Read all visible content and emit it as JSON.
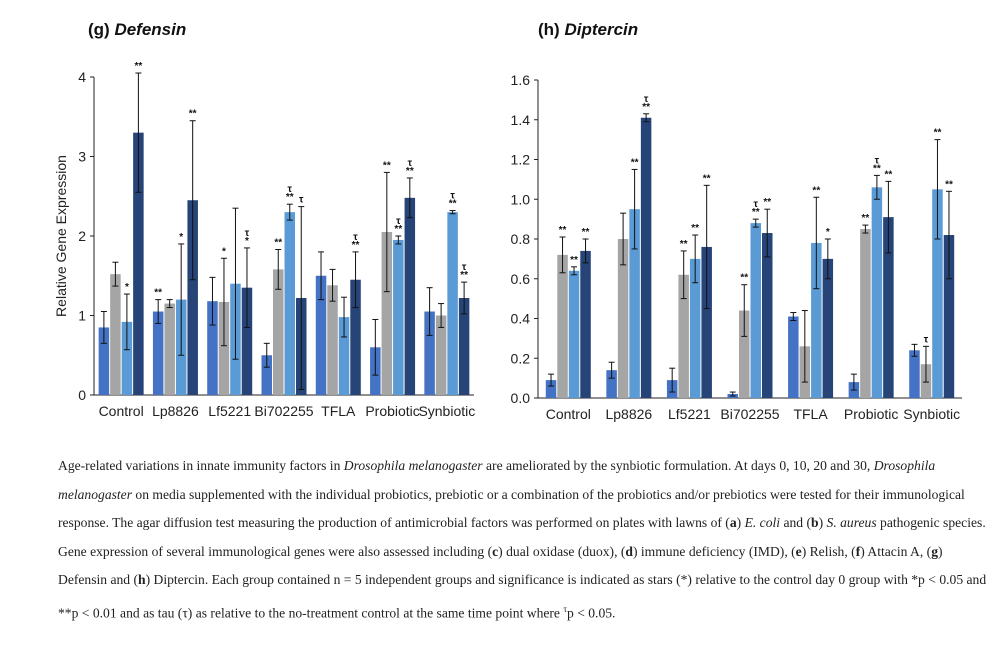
{
  "colors": {
    "day0": "#4472c4",
    "day10": "#a5a5a5",
    "day20": "#5b9bd5",
    "day30": "#264478"
  },
  "charts": {
    "g": {
      "title_prefix": "(g)",
      "title_gene": "Defensin",
      "ylabel": "Relative Gene Expression"
    },
    "h": {
      "title_prefix": "(h)",
      "title_gene": "Diptercin",
      "ylabel": ""
    }
  },
  "chart_data": [
    {
      "type": "bar",
      "title": "(g) Defensin",
      "xlabel": "",
      "ylabel": "Relative Gene Expression",
      "ylim": [
        0,
        4
      ],
      "yticks": [
        "0",
        "1",
        "2",
        "3",
        "4"
      ],
      "categories": [
        "Control",
        "Lp8826",
        "Lf5221",
        "Bi702255",
        "TFLA",
        "Probiotic",
        "Synbiotic"
      ],
      "series": [
        {
          "values": [
            0.85,
            1.05,
            1.18,
            0.5,
            1.5,
            0.6,
            1.05
          ],
          "errors": [
            0.2,
            0.15,
            0.3,
            0.15,
            0.3,
            0.35,
            0.3
          ]
        },
        {
          "values": [
            1.52,
            1.15,
            1.17,
            1.58,
            1.38,
            2.05,
            1.0
          ],
          "errors": [
            0.15,
            0.05,
            0.55,
            0.25,
            0.2,
            0.75,
            0.15
          ]
        },
        {
          "values": [
            0.92,
            1.2,
            1.4,
            2.3,
            0.98,
            1.95,
            2.3
          ],
          "errors": [
            0.35,
            0.7,
            0.95,
            0.1,
            0.25,
            0.05,
            0.02
          ]
        },
        {
          "values": [
            3.3,
            2.45,
            1.35,
            1.22,
            1.45,
            2.48,
            1.22
          ],
          "errors": [
            0.75,
            1.0,
            0.5,
            1.15,
            0.35,
            0.25,
            0.2
          ]
        }
      ],
      "annotations": [
        [
          "",
          "",
          "*",
          "**"
        ],
        [
          "**",
          "",
          "*",
          "**"
        ],
        [
          "",
          "*",
          "",
          "τ\n*"
        ],
        [
          "",
          "**",
          "τ\n**",
          "τ"
        ],
        [
          "",
          "",
          "",
          "τ\n**"
        ],
        [
          "",
          "**",
          "τ\n**",
          "τ\n**"
        ],
        [
          "",
          "",
          "τ\n**",
          "τ\n**"
        ]
      ]
    },
    {
      "type": "bar",
      "title": "(h) Diptercin",
      "xlabel": "",
      "ylabel": "",
      "ylim": [
        0,
        1.6
      ],
      "yticks": [
        "0.0",
        "0.2",
        "0.4",
        "0.6",
        "0.8",
        "1.0",
        "1.2",
        "1.4",
        "1.6"
      ],
      "categories": [
        "Control",
        "Lp8826",
        "Lf5221",
        "Bi702255",
        "TFLA",
        "Probiotic",
        "Synbiotic"
      ],
      "series": [
        {
          "values": [
            0.09,
            0.14,
            0.09,
            0.02,
            0.41,
            0.08,
            0.24
          ],
          "errors": [
            0.03,
            0.04,
            0.06,
            0.01,
            0.02,
            0.04,
            0.03
          ]
        },
        {
          "values": [
            0.72,
            0.8,
            0.62,
            0.44,
            0.26,
            0.85,
            0.17
          ],
          "errors": [
            0.09,
            0.13,
            0.12,
            0.13,
            0.18,
            0.02,
            0.09
          ]
        },
        {
          "values": [
            0.64,
            0.95,
            0.7,
            0.88,
            0.78,
            1.06,
            1.05
          ],
          "errors": [
            0.02,
            0.2,
            0.12,
            0.02,
            0.23,
            0.06,
            0.25
          ]
        },
        {
          "values": [
            0.74,
            1.41,
            0.76,
            0.83,
            0.7,
            0.91,
            0.82
          ],
          "errors": [
            0.06,
            0.02,
            0.31,
            0.12,
            0.1,
            0.18,
            0.22
          ]
        }
      ],
      "annotations": [
        [
          "",
          "**",
          "**",
          "**"
        ],
        [
          "",
          "",
          "**",
          "τ\n**"
        ],
        [
          "",
          "**",
          "**",
          "**"
        ],
        [
          "",
          "**",
          "τ\n**",
          "**"
        ],
        [
          "",
          "",
          "**",
          "*"
        ],
        [
          "",
          "**",
          "τ\n**",
          "**"
        ],
        [
          "",
          "τ",
          "**",
          "**"
        ]
      ]
    }
  ],
  "caption": {
    "p1": "Age-related variations in innate immunity factors in ",
    "p2": "Drosophila melanogaster",
    "p3": " are ameliorated by the synbiotic formulation. At days 0, 10, 20 and 30, ",
    "p4": "Drosophila melanogaster",
    "p5": " on media supplemented with the individual probiotics, prebiotic or a combination of the probiotics and/or prebiotics were tested for their immunological response. The agar diffusion test measuring the production of antimicrobial factors was performed on plates with lawns of (",
    "p6": "a",
    "p7": ") ",
    "p8": "E. coli",
    "p9": " and (",
    "p10": "b",
    "p11": ") ",
    "p12": "S. aureus",
    "p13": " pathogenic species. Gene expression of several immunological genes were also assessed including (",
    "p14": "c",
    "p15": ") dual oxidase (duox), (",
    "p16": "d",
    "p17": ") immune deficiency (IMD), (",
    "p18": "e",
    "p19": ") Relish, (",
    "p20": "f",
    "p21": ") Attacin A, (",
    "p22": "g",
    "p23": ") Defensin and (",
    "p24": "h",
    "p25": ") Diptercin. Each group contained n = 5 independent groups and significance is indicated as stars (*) relative to the control day 0 group with *p < 0.05 and **p < 0.01 and as tau (τ) as relative to the no-treatment control at the same time point where ",
    "p26": "τ",
    "p27": "p < 0.05."
  }
}
